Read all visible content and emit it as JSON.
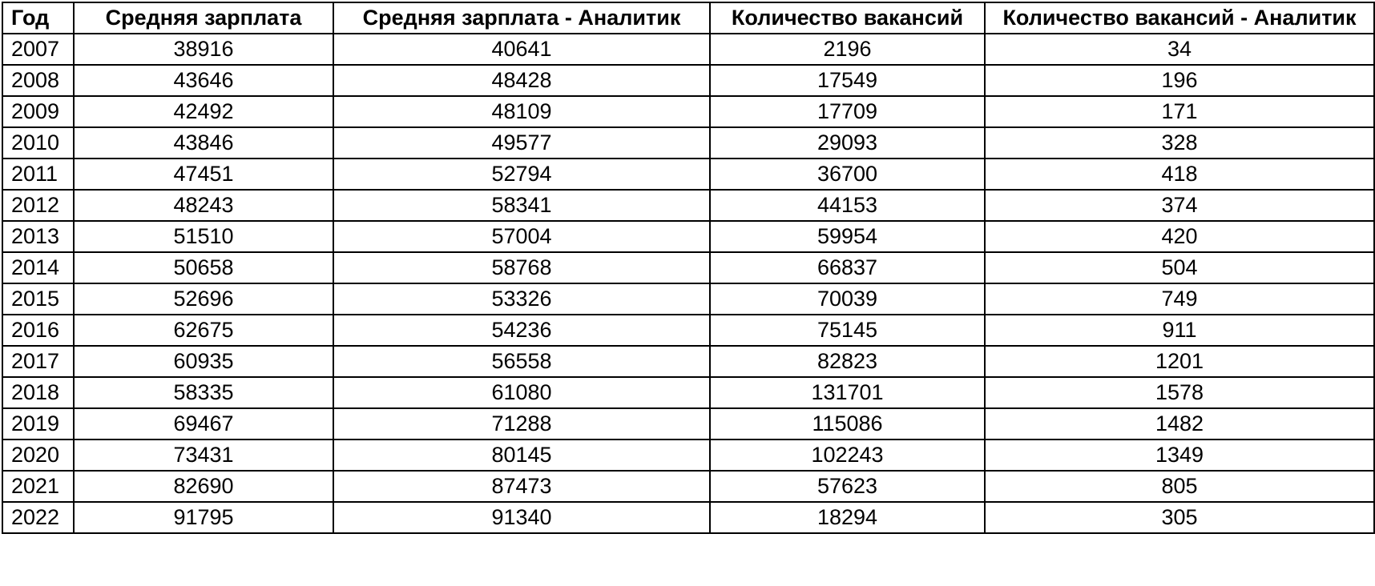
{
  "table": {
    "headers": [
      "Год",
      "Средняя зарплата",
      "Средняя зарплата - Аналитик",
      "Количество вакансий",
      "Количество вакансий - Аналитик"
    ],
    "rows": [
      [
        "2007",
        "38916",
        "40641",
        "2196",
        "34"
      ],
      [
        "2008",
        "43646",
        "48428",
        "17549",
        "196"
      ],
      [
        "2009",
        "42492",
        "48109",
        "17709",
        "171"
      ],
      [
        "2010",
        "43846",
        "49577",
        "29093",
        "328"
      ],
      [
        "2011",
        "47451",
        "52794",
        "36700",
        "418"
      ],
      [
        "2012",
        "48243",
        "58341",
        "44153",
        "374"
      ],
      [
        "2013",
        "51510",
        "57004",
        "59954",
        "420"
      ],
      [
        "2014",
        "50658",
        "58768",
        "66837",
        "504"
      ],
      [
        "2015",
        "52696",
        "53326",
        "70039",
        "749"
      ],
      [
        "2016",
        "62675",
        "54236",
        "75145",
        "911"
      ],
      [
        "2017",
        "60935",
        "56558",
        "82823",
        "1201"
      ],
      [
        "2018",
        "58335",
        "61080",
        "131701",
        "1578"
      ],
      [
        "2019",
        "69467",
        "71288",
        "115086",
        "1482"
      ],
      [
        "2020",
        "73431",
        "80145",
        "102243",
        "1349"
      ],
      [
        "2021",
        "82690",
        "87473",
        "57623",
        "805"
      ],
      [
        "2022",
        "91795",
        "91340",
        "18294",
        "305"
      ]
    ]
  }
}
